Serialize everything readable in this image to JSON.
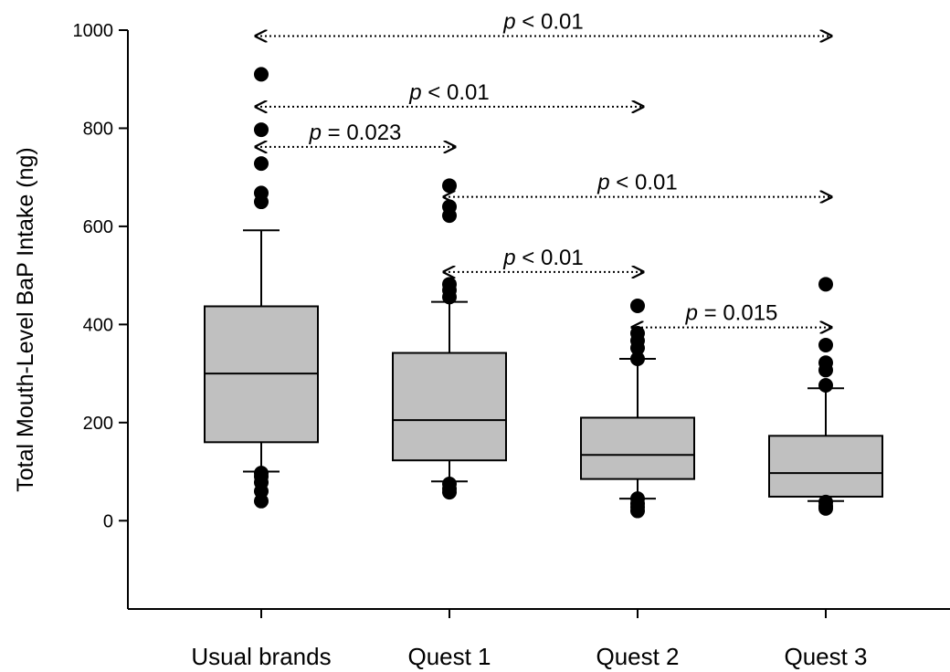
{
  "chart_data": {
    "type": "box",
    "ylabel": "Total Mouth-Level BaP Intake (ng)",
    "xlabel": "",
    "ylim": [
      -180,
      1000
    ],
    "yticks": [
      0,
      200,
      400,
      600,
      800,
      1000
    ],
    "ytick_labels": [
      "0",
      "200",
      "400",
      "600",
      "800",
      "1000"
    ],
    "grid": false,
    "colors": {
      "box_fill": "#c0c0c0",
      "stroke": "#000000",
      "outlier": "#000000"
    },
    "categories": [
      "Usual brands",
      "Quest 1",
      "Quest 2",
      "Quest 3"
    ],
    "boxes": [
      {
        "category": "Usual brands",
        "whisker_low": 100,
        "q1": 160,
        "median": 300,
        "q3": 437,
        "whisker_high": 592,
        "outliers": [
          910,
          797,
          728,
          668,
          650,
          97,
          90,
          78,
          60,
          40
        ]
      },
      {
        "category": "Quest 1",
        "whisker_low": 80,
        "q1": 123,
        "median": 205,
        "q3": 342,
        "whisker_high": 446,
        "outliers": [
          683,
          640,
          622,
          482,
          470,
          456,
          75,
          65,
          58
        ]
      },
      {
        "category": "Quest 2",
        "whisker_low": 45,
        "q1": 85,
        "median": 134,
        "q3": 210,
        "whisker_high": 330,
        "outliers": [
          438,
          382,
          367,
          352,
          330,
          45,
          35,
          28,
          20
        ]
      },
      {
        "category": "Quest 3",
        "whisker_low": 40,
        "q1": 49,
        "median": 97,
        "q3": 173,
        "whisker_high": 270,
        "outliers": [
          482,
          358,
          322,
          307,
          276,
          38,
          30,
          25
        ]
      }
    ],
    "annotations": [
      {
        "p": "p",
        "op": " < ",
        "value": "0.01",
        "from": "Usual brands",
        "to": "Quest 3",
        "y": 988
      },
      {
        "p": "p",
        "op": " < ",
        "value": "0.01",
        "from": "Usual brands",
        "to": "Quest 2",
        "y": 844
      },
      {
        "p": "p",
        "op": " = ",
        "value": "0.023",
        "from": "Usual brands",
        "to": "Quest 1",
        "y": 762
      },
      {
        "p": "p",
        "op": " < ",
        "value": "0.01",
        "from": "Quest 1",
        "to": "Quest 3",
        "y": 660
      },
      {
        "p": "p",
        "op": " < ",
        "value": "0.01",
        "from": "Quest 1",
        "to": "Quest 2",
        "y": 507
      },
      {
        "p": "p",
        "op": " = ",
        "value": "0.015",
        "from": "Quest 2",
        "to": "Quest 3",
        "y": 394
      }
    ]
  }
}
